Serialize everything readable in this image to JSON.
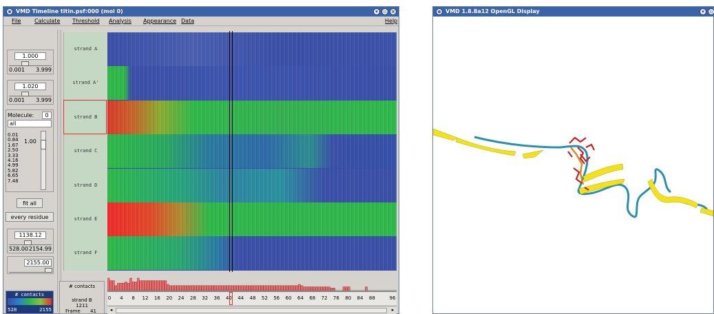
{
  "timeline": {
    "title": "VMD Timeline  titin.psf:000 (mol 0)",
    "menus": [
      "File",
      "Calculate",
      "Threshold",
      "Analysis",
      "Appearance",
      "Data",
      "Help"
    ],
    "slider1": {
      "value": "1.000",
      "min": "0.001",
      "max": "3.999",
      "level": 0.25
    },
    "slider2": {
      "value": "1.020",
      "min": "0.001",
      "max": "3.999",
      "level": 0.25
    },
    "molecule": {
      "label": "Molecule:",
      "id": "0",
      "selection": "all"
    },
    "threshold_list": [
      "0.01",
      "0.84",
      "1.67",
      "2.50",
      "3.33",
      "4.16",
      "4.99",
      "5.82",
      "6.65",
      "7.48"
    ],
    "threshold_current": "1.00",
    "fit_all_label": "fit all",
    "every_residue_label": "every residue",
    "scale_slider": {
      "value": "1138.12",
      "min": "528.00",
      "max": "2154.99"
    },
    "frame_slider": {
      "value": "2155.00"
    },
    "color_scale": {
      "label": "# contacts",
      "min": "528",
      "max": "2155"
    },
    "info": {
      "header": "# contacts",
      "strand": "strand B",
      "value": "1211",
      "frame_label": "Frame",
      "frame": "41"
    },
    "strands": [
      "strand A",
      "strand A'",
      "strand B",
      "strand C",
      "strand D",
      "strand E",
      "strand F"
    ],
    "selected_strand_index": 2,
    "current_frame": 41,
    "frame_ticks": [
      "0",
      "4",
      "8",
      "12",
      "16",
      "20",
      "24",
      "28",
      "32",
      "36",
      "40",
      "44",
      "48",
      "52",
      "56",
      "60",
      "64",
      "68",
      "72",
      "76",
      "80",
      "84",
      "88",
      "96"
    ],
    "colors": {
      "blue": "#3a4fa8",
      "green": "#2fb84a",
      "red": "#ee2a2a",
      "selection": "#e0302a"
    }
  },
  "gl_display": {
    "title": "VMD 1.8.8a12 OpenGL Display"
  }
}
